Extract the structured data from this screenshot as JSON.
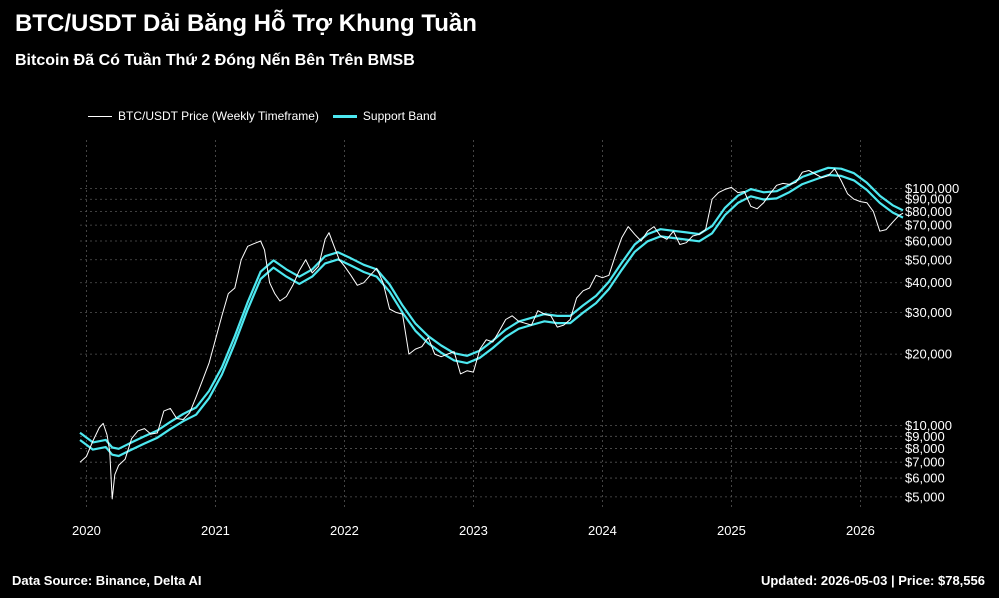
{
  "header": {
    "title": "BTC/USDT Dải Băng Hỗ Trợ Khung Tuần",
    "subtitle": "Bitcoin Đã Có Tuần Thứ 2 Đóng Nến Bên Trên BMSB"
  },
  "legend": {
    "price_label": "BTC/USDT Price (Weekly Timeframe)",
    "band_label": "Support Band"
  },
  "footer": {
    "source": "Data Source: Binance, Delta AI",
    "updated": "Updated: 2026-05-03 | Price: $78,556"
  },
  "colors": {
    "background": "#000000",
    "price": "#ffffff",
    "band": "#4de8f0",
    "grid": "#555555"
  },
  "chart_data": {
    "type": "line",
    "title": "BTC/USDT Dải Băng Hỗ Trợ Khung Tuần",
    "subtitle": "Bitcoin Đã Có Tuần Thứ 2 Đóng Nến Bên Trên BMSB",
    "y_scale": "log",
    "y_axis_position": "right",
    "grid": true,
    "legend_position": "top-left",
    "xlim": [
      2019.95,
      2026.33
    ],
    "ylim": [
      4400,
      160000
    ],
    "x_ticks": [
      2020,
      2021,
      2022,
      2023,
      2024,
      2025,
      2026
    ],
    "x_tick_labels": [
      "2020",
      "2021",
      "2022",
      "2023",
      "2024",
      "2025",
      "2026"
    ],
    "y_ticks": [
      5000,
      6000,
      7000,
      8000,
      9000,
      10000,
      20000,
      30000,
      40000,
      50000,
      60000,
      70000,
      80000,
      90000,
      100000
    ],
    "y_tick_labels": [
      "$5,000",
      "$6,000",
      "$7,000",
      "$8,000",
      "$9,000",
      "$10,000",
      "$20,000",
      "$30,000",
      "$40,000",
      "$50,000",
      "$60,000",
      "$70,000",
      "$80,000",
      "$90,000",
      "$100,000"
    ],
    "series": [
      {
        "name": "BTC/USDT Price (Weekly Timeframe)",
        "x": [
          2019.95,
          2020.0,
          2020.05,
          2020.1,
          2020.13,
          2020.16,
          2020.18,
          2020.2,
          2020.22,
          2020.25,
          2020.3,
          2020.35,
          2020.4,
          2020.45,
          2020.5,
          2020.55,
          2020.6,
          2020.65,
          2020.7,
          2020.75,
          2020.8,
          2020.85,
          2020.9,
          2020.95,
          2021.0,
          2021.05,
          2021.1,
          2021.15,
          2021.2,
          2021.25,
          2021.3,
          2021.35,
          2021.38,
          2021.42,
          2021.46,
          2021.5,
          2021.55,
          2021.6,
          2021.65,
          2021.7,
          2021.75,
          2021.8,
          2021.85,
          2021.88,
          2021.92,
          2021.96,
          2022.0,
          2022.05,
          2022.1,
          2022.15,
          2022.2,
          2022.25,
          2022.3,
          2022.35,
          2022.4,
          2022.45,
          2022.5,
          2022.55,
          2022.6,
          2022.65,
          2022.7,
          2022.75,
          2022.8,
          2022.85,
          2022.9,
          2022.95,
          2023.0,
          2023.05,
          2023.1,
          2023.15,
          2023.2,
          2023.25,
          2023.3,
          2023.35,
          2023.4,
          2023.45,
          2023.5,
          2023.55,
          2023.6,
          2023.65,
          2023.7,
          2023.75,
          2023.8,
          2023.85,
          2023.9,
          2023.95,
          2024.0,
          2024.05,
          2024.1,
          2024.15,
          2024.2,
          2024.25,
          2024.3,
          2024.35,
          2024.4,
          2024.45,
          2024.5,
          2024.55,
          2024.6,
          2024.65,
          2024.7,
          2024.75,
          2024.8,
          2024.85,
          2024.9,
          2024.95,
          2025.0,
          2025.05,
          2025.1,
          2025.15,
          2025.2,
          2025.25,
          2025.3,
          2025.35,
          2025.4,
          2025.45,
          2025.5,
          2025.55,
          2025.6,
          2025.65,
          2025.7,
          2025.75,
          2025.8,
          2025.85,
          2025.9,
          2025.95,
          2026.0,
          2026.05,
          2026.1,
          2026.15,
          2026.2,
          2026.25,
          2026.3,
          2026.33
        ],
        "y": [
          7000,
          7400,
          8600,
          9800,
          10200,
          9100,
          7800,
          4900,
          6200,
          6800,
          7200,
          8800,
          9500,
          9700,
          9200,
          9300,
          11500,
          11800,
          10700,
          10600,
          11300,
          13200,
          15500,
          18300,
          23000,
          29000,
          36000,
          38000,
          50000,
          57000,
          58500,
          60000,
          55000,
          40000,
          36000,
          33500,
          35000,
          39000,
          45000,
          50000,
          44000,
          47000,
          61000,
          65000,
          57000,
          50000,
          47000,
          43000,
          39000,
          40000,
          43000,
          46000,
          40000,
          31000,
          30000,
          29500,
          20000,
          21000,
          21500,
          23500,
          20000,
          19500,
          20000,
          20500,
          16500,
          17000,
          16800,
          21000,
          23000,
          22500,
          25000,
          28000,
          29000,
          27500,
          27000,
          26500,
          30500,
          29500,
          29000,
          26000,
          26500,
          28000,
          34500,
          37000,
          38000,
          43000,
          42000,
          43000,
          52000,
          62000,
          69000,
          64000,
          60000,
          66000,
          69000,
          63000,
          61000,
          66000,
          58000,
          59000,
          63000,
          64000,
          67000,
          90000,
          96000,
          99000,
          101000,
          96000,
          97000,
          84000,
          82000,
          87000,
          95000,
          103000,
          105000,
          104000,
          106000,
          117000,
          119000,
          115000,
          111000,
          113000,
          121000,
          108000,
          95000,
          90000,
          88000,
          87000,
          80000,
          66000,
          67000,
          72000,
          77000,
          78556
        ],
        "color": "#ffffff"
      },
      {
        "name": "Support Band",
        "x": [
          2019.95,
          2020.05,
          2020.15,
          2020.2,
          2020.25,
          2020.35,
          2020.45,
          2020.55,
          2020.65,
          2020.75,
          2020.85,
          2020.95,
          2021.05,
          2021.15,
          2021.25,
          2021.35,
          2021.45,
          2021.55,
          2021.65,
          2021.75,
          2021.85,
          2021.95,
          2022.05,
          2022.15,
          2022.25,
          2022.35,
          2022.45,
          2022.55,
          2022.65,
          2022.75,
          2022.85,
          2022.95,
          2023.05,
          2023.15,
          2023.25,
          2023.35,
          2023.45,
          2023.55,
          2023.65,
          2023.75,
          2023.85,
          2023.95,
          2024.05,
          2024.15,
          2024.25,
          2024.35,
          2024.45,
          2024.55,
          2024.65,
          2024.75,
          2024.85,
          2024.95,
          2025.05,
          2025.15,
          2025.25,
          2025.35,
          2025.45,
          2025.55,
          2025.65,
          2025.75,
          2025.85,
          2025.95,
          2026.05,
          2026.15,
          2026.25,
          2026.33
        ],
        "y": [
          9000,
          8200,
          8400,
          7800,
          7700,
          8200,
          8700,
          9200,
          10000,
          10800,
          11500,
          13500,
          17000,
          23000,
          32000,
          43000,
          48000,
          44000,
          41000,
          44000,
          50000,
          52000,
          49000,
          46000,
          44000,
          38000,
          31000,
          26000,
          23000,
          21000,
          19500,
          19000,
          20000,
          22000,
          24500,
          26500,
          27500,
          28500,
          28000,
          28000,
          31000,
          34000,
          39000,
          47000,
          56000,
          62000,
          65000,
          64000,
          63000,
          62000,
          67000,
          80000,
          90000,
          96000,
          93000,
          94000,
          100000,
          108000,
          113000,
          118000,
          117000,
          112000,
          102000,
          90000,
          82000,
          78000
        ],
        "color": "#4de8f0"
      }
    ]
  }
}
